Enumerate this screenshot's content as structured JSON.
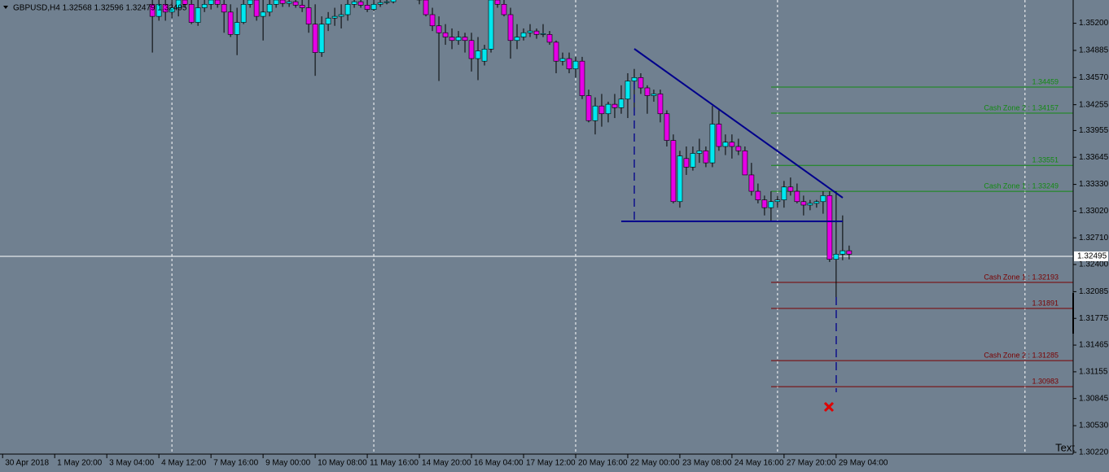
{
  "chart_data": {
    "type": "candlestick",
    "title": "GBPUSD,H4  1.32568 1.32596 1.32479 1.32495",
    "corner_text": "Text",
    "up_color": "#00e8f0",
    "down_color": "#e600e6",
    "open": [
      1.3542,
      1.3528,
      1.3542,
      1.3533,
      1.3538,
      1.3547,
      1.3542,
      1.3521,
      1.3538,
      1.3542,
      1.3547,
      1.3542,
      1.3533,
      1.3507,
      1.3521,
      1.3542,
      1.3547,
      1.3528,
      1.3533,
      1.3542,
      1.3547,
      1.3543,
      1.3545,
      1.3541,
      1.3538,
      1.3519,
      1.3486,
      1.3519,
      1.3526,
      1.3528,
      1.353,
      1.3542,
      1.3545,
      1.3541,
      1.3536,
      1.3542,
      1.3544,
      1.3545,
      1.3552,
      1.3555,
      1.3552,
      1.355,
      1.3547,
      1.353,
      1.3517,
      1.3509,
      1.3504,
      1.35,
      1.3504,
      1.35,
      1.3479,
      1.3476,
      1.349,
      1.3547,
      1.3542,
      1.353,
      1.35,
      1.3504,
      1.3509,
      1.3511,
      1.3507,
      1.3507,
      1.3498,
      1.3476,
      1.3479,
      1.3467,
      1.3476,
      1.3436,
      1.3407,
      1.3424,
      1.3415,
      1.3426,
      1.3422,
      1.3432,
      1.3453,
      1.3457,
      1.3445,
      1.3436,
      1.3438,
      1.3415,
      1.3384,
      1.3313,
      1.3363,
      1.3353,
      1.3369,
      1.3372,
      1.3358,
      1.3403,
      1.3377,
      1.3382,
      1.3377,
      1.3372,
      1.3344,
      1.3325,
      1.3315,
      1.3306,
      1.3313,
      1.3315,
      1.333,
      1.3325,
      1.3313,
      1.3309,
      1.3311,
      1.3313,
      1.332,
      1.3246,
      1.3252,
      1.3256
    ],
    "high": [
      1.3566,
      1.3557,
      1.3557,
      1.3547,
      1.3557,
      1.3566,
      1.3552,
      1.3547,
      1.3552,
      1.3557,
      1.3557,
      1.3552,
      1.3542,
      1.3538,
      1.3552,
      1.3557,
      1.3552,
      1.3547,
      1.3552,
      1.3552,
      1.3552,
      1.355,
      1.3552,
      1.3549,
      1.3547,
      1.3542,
      1.3528,
      1.3533,
      1.3538,
      1.3542,
      1.3547,
      1.3552,
      1.3552,
      1.3547,
      1.3547,
      1.3552,
      1.3552,
      1.3557,
      1.3561,
      1.3558,
      1.3557,
      1.3555,
      1.3557,
      1.3538,
      1.3528,
      1.3519,
      1.3514,
      1.3511,
      1.3509,
      1.3509,
      1.3504,
      1.3495,
      1.3552,
      1.3557,
      1.3552,
      1.3538,
      1.3519,
      1.3514,
      1.3519,
      1.3514,
      1.3519,
      1.3511,
      1.35,
      1.3486,
      1.3486,
      1.3481,
      1.3481,
      1.3443,
      1.3434,
      1.3438,
      1.3429,
      1.3438,
      1.3448,
      1.3462,
      1.3467,
      1.3462,
      1.3448,
      1.3443,
      1.3443,
      1.3419,
      1.3391,
      1.3372,
      1.3377,
      1.3377,
      1.3386,
      1.3377,
      1.3424,
      1.3419,
      1.3391,
      1.3391,
      1.3386,
      1.3377,
      1.3358,
      1.3334,
      1.332,
      1.3325,
      1.332,
      1.3337,
      1.3341,
      1.3334,
      1.332,
      1.3315,
      1.3315,
      1.3325,
      1.3325,
      1.3325,
      1.3297,
      1.3262
    ],
    "low": [
      1.3486,
      1.3523,
      1.3523,
      1.3526,
      1.3528,
      1.3538,
      1.3519,
      1.3517,
      1.3533,
      1.3536,
      1.3538,
      1.3509,
      1.3504,
      1.3483,
      1.3519,
      1.3538,
      1.3523,
      1.35,
      1.3528,
      1.3538,
      1.3539,
      1.3539,
      1.3538,
      1.3533,
      1.3509,
      1.3459,
      1.3481,
      1.3511,
      1.3517,
      1.3514,
      1.3523,
      1.3538,
      1.3538,
      1.3533,
      1.3534,
      1.3539,
      1.3542,
      1.3543,
      1.3549,
      1.3549,
      1.3547,
      1.3542,
      1.3528,
      1.3511,
      1.3453,
      1.3495,
      1.349,
      1.3495,
      1.3486,
      1.3464,
      1.3454,
      1.3471,
      1.3486,
      1.3538,
      1.3528,
      1.3479,
      1.349,
      1.35,
      1.3504,
      1.3502,
      1.3504,
      1.3495,
      1.3462,
      1.3471,
      1.3462,
      1.3457,
      1.3432,
      1.3405,
      1.3391,
      1.34,
      1.3405,
      1.341,
      1.3415,
      1.341,
      1.3419,
      1.3438,
      1.3415,
      1.3429,
      1.3405,
      1.3377,
      1.3311,
      1.3306,
      1.3344,
      1.3349,
      1.3358,
      1.3353,
      1.3353,
      1.3372,
      1.3367,
      1.3363,
      1.3367,
      1.3344,
      1.332,
      1.3311,
      1.3297,
      1.329,
      1.3306,
      1.3306,
      1.332,
      1.3311,
      1.3297,
      1.3303,
      1.3306,
      1.3299,
      1.3243,
      1.3202,
      1.3245,
      1.3246
    ],
    "close": [
      1.3528,
      1.3542,
      1.3533,
      1.3538,
      1.3547,
      1.3542,
      1.3521,
      1.3538,
      1.3542,
      1.3547,
      1.3542,
      1.3533,
      1.3507,
      1.3521,
      1.3542,
      1.3547,
      1.3528,
      1.3533,
      1.3542,
      1.3547,
      1.3543,
      1.3545,
      1.3541,
      1.3538,
      1.3519,
      1.3486,
      1.3519,
      1.3526,
      1.3528,
      1.353,
      1.3542,
      1.3545,
      1.3541,
      1.3536,
      1.3542,
      1.3544,
      1.3545,
      1.3552,
      1.3555,
      1.3552,
      1.355,
      1.3547,
      1.353,
      1.3517,
      1.3509,
      1.3504,
      1.35,
      1.3504,
      1.35,
      1.3479,
      1.3488,
      1.349,
      1.3547,
      1.3542,
      1.353,
      1.35,
      1.3504,
      1.3509,
      1.3511,
      1.3507,
      1.3508,
      1.3498,
      1.3476,
      1.3479,
      1.3467,
      1.3476,
      1.3436,
      1.3407,
      1.3424,
      1.3415,
      1.3426,
      1.3422,
      1.3432,
      1.3453,
      1.3457,
      1.3445,
      1.3436,
      1.3438,
      1.3415,
      1.3384,
      1.3313,
      1.3366,
      1.3353,
      1.3369,
      1.3372,
      1.3358,
      1.3403,
      1.3377,
      1.3382,
      1.3377,
      1.3372,
      1.3344,
      1.3325,
      1.3315,
      1.3306,
      1.3313,
      1.3315,
      1.333,
      1.3325,
      1.3313,
      1.3309,
      1.3311,
      1.3313,
      1.332,
      1.3246,
      1.3252,
      1.3256,
      1.3252
    ],
    "xlim": [
      -23.4,
      141.4
    ],
    "xticks": [
      {
        "value": -23,
        "label": "30 Apr 2018"
      },
      {
        "value": -15,
        "label": "1 May 20:00"
      },
      {
        "value": -7,
        "label": "3 May 04:00"
      },
      {
        "value": 1,
        "label": "4 May 12:00"
      },
      {
        "value": 9,
        "label": "7 May 16:00"
      },
      {
        "value": 17,
        "label": "9 May 00:00"
      },
      {
        "value": 25,
        "label": "10 May 08:00"
      },
      {
        "value": 33,
        "label": "11 May 16:00"
      },
      {
        "value": 41,
        "label": "14 May 20:00"
      },
      {
        "value": 49,
        "label": "16 May 04:00"
      },
      {
        "value": 57,
        "label": "17 May 12:00"
      },
      {
        "value": 65,
        "label": "20 May 16:00"
      },
      {
        "value": 73,
        "label": "22 May 00:00"
      },
      {
        "value": 81,
        "label": "23 May 08:00"
      },
      {
        "value": 89,
        "label": "24 May 16:00"
      },
      {
        "value": 97,
        "label": "27 May 20:00"
      },
      {
        "value": 105,
        "label": "29 May 04:00"
      }
    ],
    "xgrid": [
      3,
      34,
      65,
      96,
      134
    ],
    "ylim": [
      1.302,
      1.3547
    ],
    "yticks": [
      {
        "value": 1.352,
        "label": "1.35200"
      },
      1.34885,
      {
        "value": 1.3457,
        "label": "1.34570"
      },
      1.34255,
      1.33955,
      1.33645,
      {
        "value": 1.3333,
        "label": "1.33330"
      },
      {
        "value": 1.3302,
        "label": "1.33020"
      },
      {
        "value": 1.3271,
        "label": "1.32710"
      },
      {
        "value": 1.324,
        "label": "1.32400"
      },
      1.32085,
      1.31775,
      1.31465,
      1.31155,
      1.30845,
      {
        "value": 1.3053,
        "label": "1.30530"
      },
      {
        "value": 1.3022,
        "label": "1.30220"
      }
    ],
    "last_price": 1.32495,
    "levels": [
      {
        "value": 1.34459,
        "color": "#138a13"
      },
      {
        "value": 1.34157,
        "label": "Cash Zone 2 : 1.34157",
        "color": "#138a13"
      },
      {
        "value": 1.33551,
        "color": "#138a13"
      },
      {
        "value": 1.33249,
        "label": "Cash Zone 1 : 1.33249",
        "color": "#138a13"
      },
      {
        "value": 1.32193,
        "label": "Cash Zone 1 : 1.32193",
        "color": "#7a0000"
      },
      {
        "value": 1.31891,
        "color": "#7a0000"
      },
      {
        "value": 1.31285,
        "label": "Cash Zone 2 : 1.31285",
        "color": "#7a0000"
      },
      {
        "value": 1.30983,
        "color": "#7a0000"
      }
    ]
  }
}
